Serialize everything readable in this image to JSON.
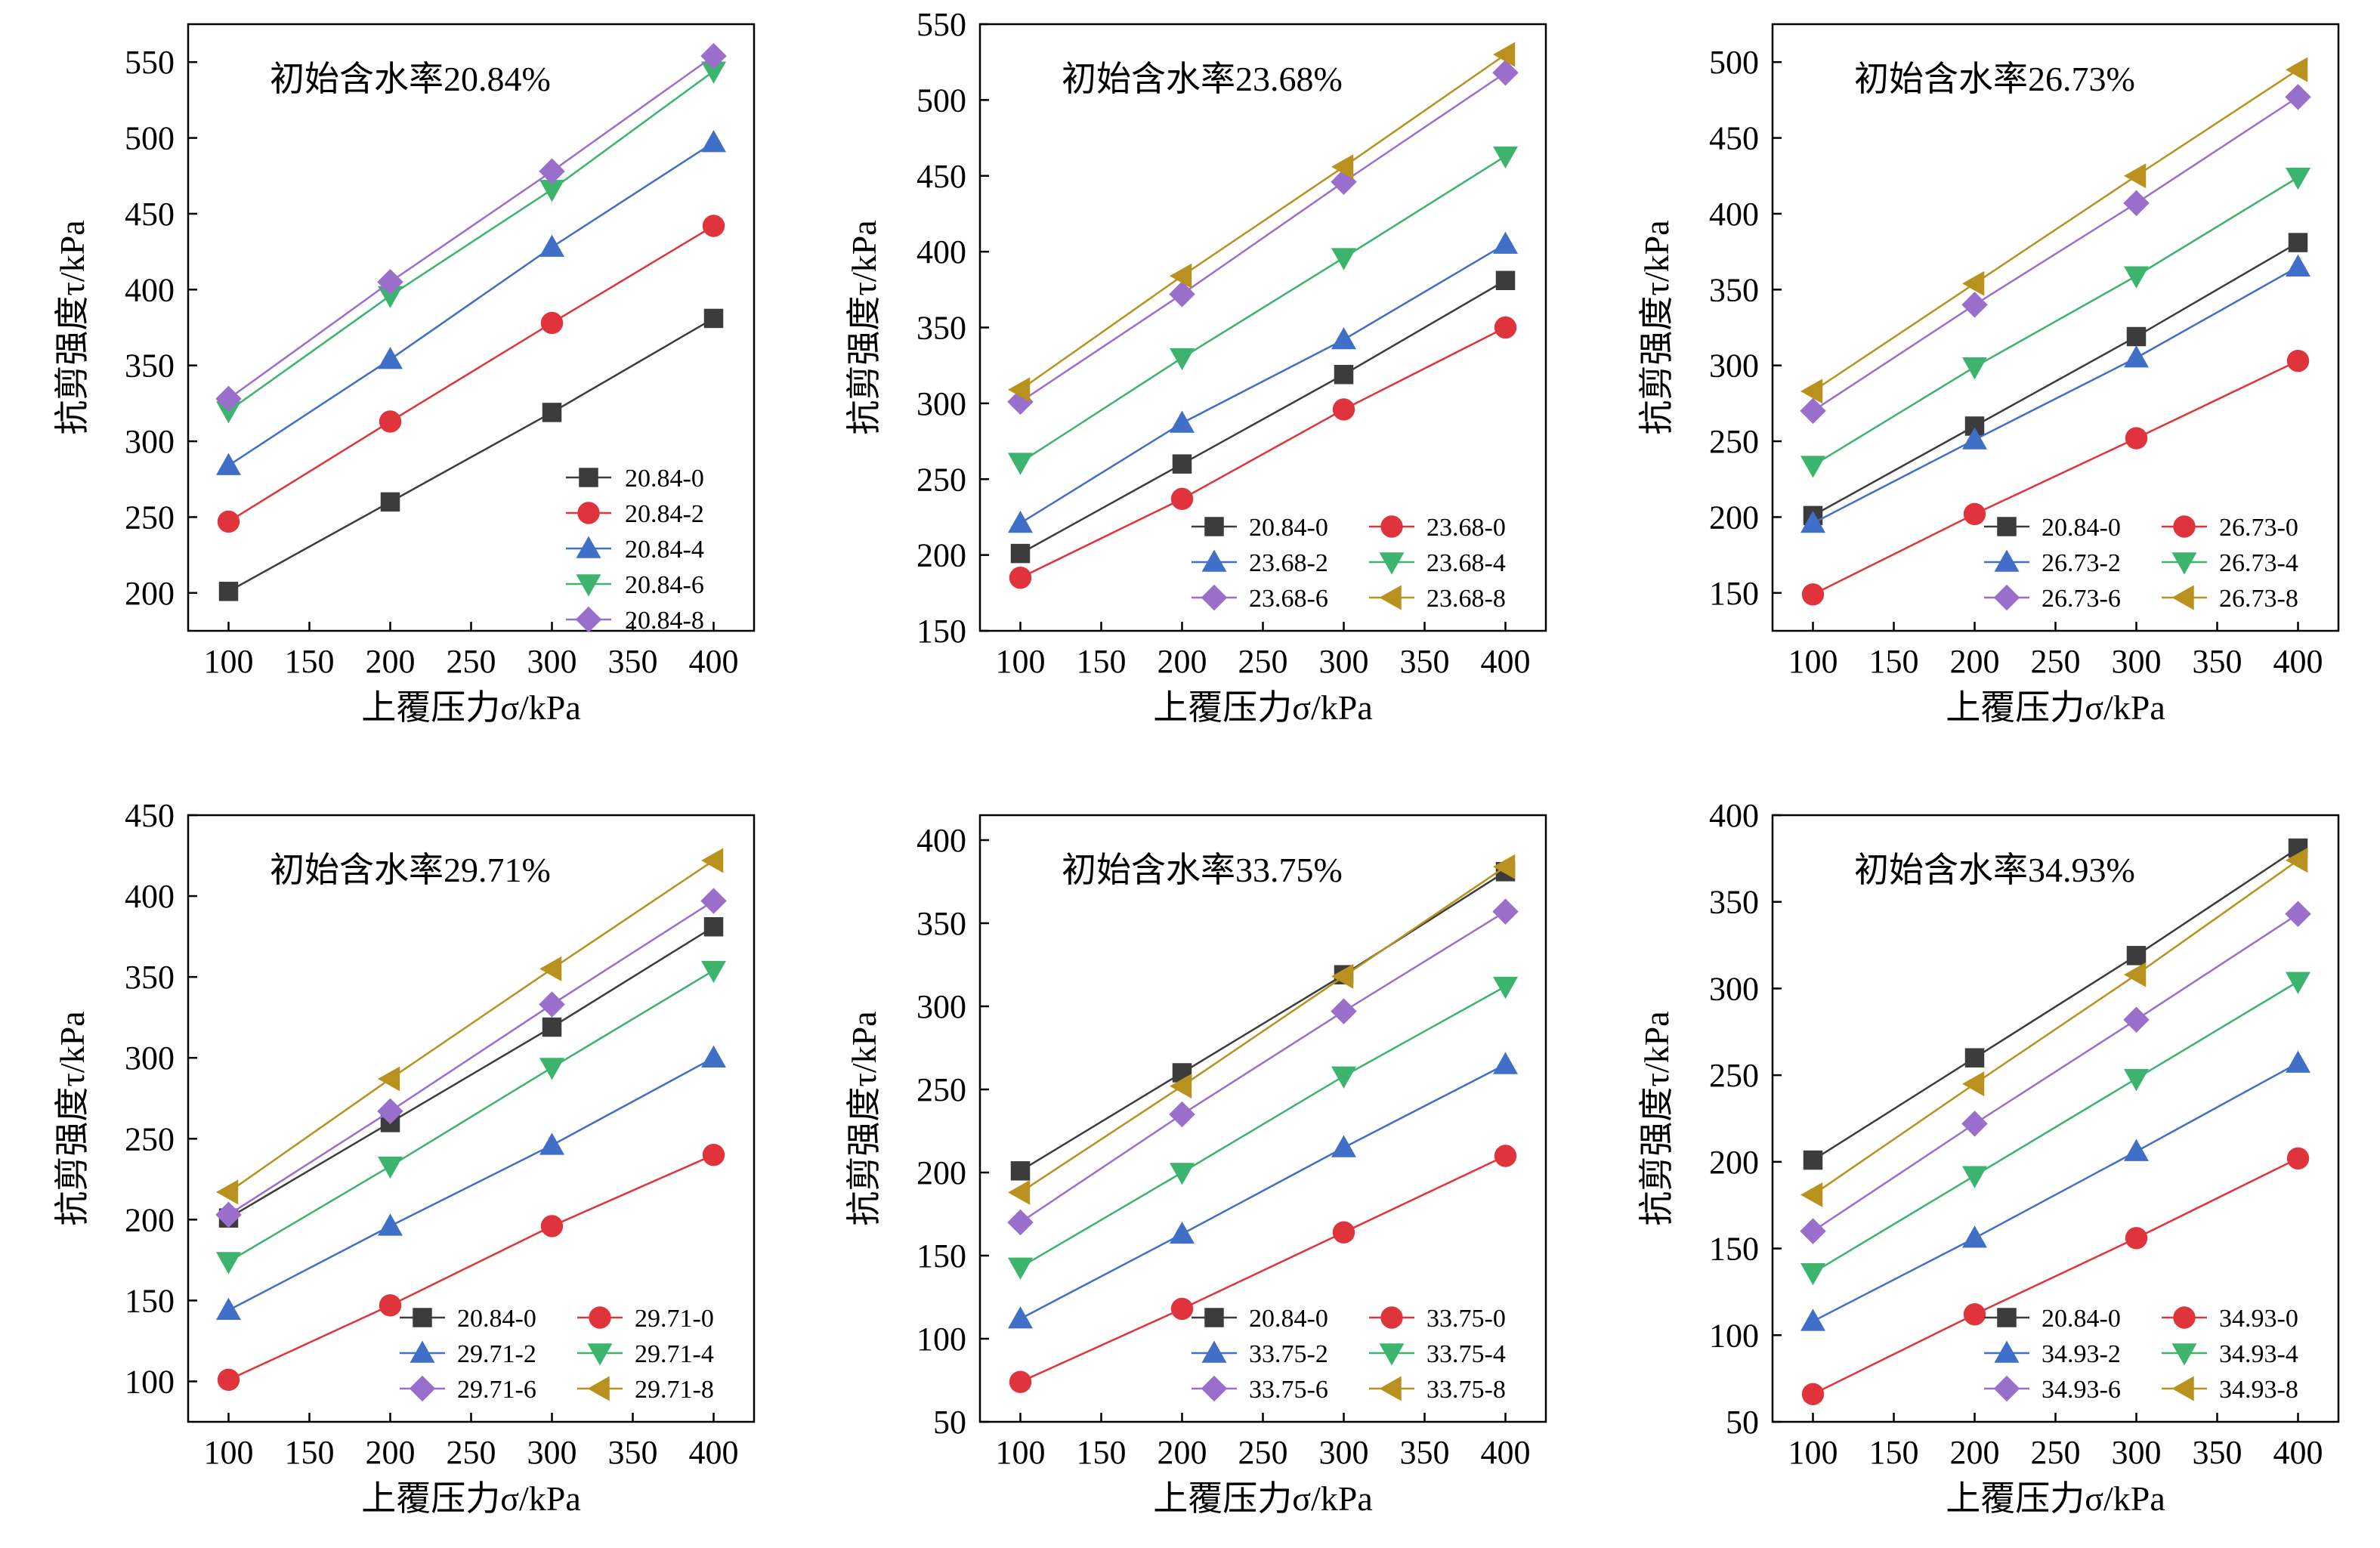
{
  "figure": {
    "colors": {
      "black": "#3c3c3c",
      "red": "#e0343c",
      "blue": "#3f6fc6",
      "green": "#3cb46e",
      "purple": "#9a6fcc",
      "gold": "#b8911f"
    }
  },
  "chart_data": [
    {
      "type": "line",
      "annotation": "初始含水率20.84%",
      "xlabel": "上覆压力σ/kPa",
      "ylabel": "抗剪强度τ/kPa",
      "xlim": [
        75,
        425
      ],
      "ylim": [
        175,
        575
      ],
      "xticks": [
        "100",
        "150",
        "200",
        "250",
        "300",
        "350",
        "400"
      ],
      "yticks": [
        "200",
        "250",
        "300",
        "350",
        "400",
        "450",
        "500",
        "550"
      ],
      "legend_columns": 1,
      "x": [
        100,
        200,
        300,
        400
      ],
      "series": [
        {
          "name": "20.84-0",
          "marker": "square",
          "color": "#3c3c3c",
          "values": [
            201,
            260,
            319,
            381
          ]
        },
        {
          "name": "20.84-2",
          "marker": "circle",
          "color": "#e0343c",
          "values": [
            247,
            313,
            378,
            442
          ]
        },
        {
          "name": "20.84-4",
          "marker": "triangle-up",
          "color": "#3f6fc6",
          "values": [
            284,
            354,
            428,
            497
          ]
        },
        {
          "name": "20.84-6",
          "marker": "triangle-down",
          "color": "#3cb46e",
          "values": [
            320,
            396,
            466,
            544
          ]
        },
        {
          "name": "20.84-8",
          "marker": "diamond",
          "color": "#9a6fcc",
          "values": [
            328,
            405,
            478,
            554
          ]
        }
      ]
    },
    {
      "type": "line",
      "annotation": "初始含水率23.68%",
      "xlabel": "上覆压力σ/kPa",
      "ylabel": "抗剪强度τ/kPa",
      "xlim": [
        75,
        425
      ],
      "ylim": [
        150,
        550
      ],
      "xticks": [
        "100",
        "150",
        "200",
        "250",
        "300",
        "350",
        "400"
      ],
      "yticks": [
        "150",
        "200",
        "250",
        "300",
        "350",
        "400",
        "450",
        "500",
        "550"
      ],
      "legend_columns": 2,
      "x": [
        100,
        200,
        300,
        400
      ],
      "series": [
        {
          "name": "20.84-0",
          "marker": "square",
          "color": "#3c3c3c",
          "values": [
            201,
            260,
            319,
            381
          ]
        },
        {
          "name": "23.68-0",
          "marker": "circle",
          "color": "#e0343c",
          "values": [
            185,
            237,
            296,
            350
          ]
        },
        {
          "name": "23.68-2",
          "marker": "triangle-up",
          "color": "#3f6fc6",
          "values": [
            221,
            287,
            342,
            405
          ]
        },
        {
          "name": "23.68-4",
          "marker": "triangle-down",
          "color": "#3cb46e",
          "values": [
            261,
            330,
            396,
            463
          ]
        },
        {
          "name": "23.68-6",
          "marker": "diamond",
          "color": "#9a6fcc",
          "values": [
            301,
            372,
            446,
            518
          ]
        },
        {
          "name": "23.68-8",
          "marker": "triangle-left",
          "color": "#b8911f",
          "values": [
            309,
            384,
            456,
            530
          ]
        }
      ]
    },
    {
      "type": "line",
      "annotation": "初始含水率26.73%",
      "xlabel": "上覆压力σ/kPa",
      "ylabel": "抗剪强度τ/kPa",
      "xlim": [
        75,
        425
      ],
      "ylim": [
        125,
        525
      ],
      "xticks": [
        "100",
        "150",
        "200",
        "250",
        "300",
        "350",
        "400"
      ],
      "yticks": [
        "150",
        "200",
        "250",
        "300",
        "350",
        "400",
        "450",
        "500"
      ],
      "legend_columns": 2,
      "x": [
        100,
        200,
        300,
        400
      ],
      "series": [
        {
          "name": "20.84-0",
          "marker": "square",
          "color": "#3c3c3c",
          "values": [
            201,
            260,
            319,
            381
          ]
        },
        {
          "name": "26.73-0",
          "marker": "circle",
          "color": "#e0343c",
          "values": [
            149,
            202,
            252,
            303
          ]
        },
        {
          "name": "26.73-2",
          "marker": "triangle-up",
          "color": "#3f6fc6",
          "values": [
            196,
            251,
            305,
            365
          ]
        },
        {
          "name": "26.73-4",
          "marker": "triangle-down",
          "color": "#3cb46e",
          "values": [
            234,
            299,
            359,
            424
          ]
        },
        {
          "name": "26.73-6",
          "marker": "diamond",
          "color": "#9a6fcc",
          "values": [
            270,
            340,
            407,
            477
          ]
        },
        {
          "name": "26.73-8",
          "marker": "triangle-left",
          "color": "#b8911f",
          "values": [
            283,
            354,
            425,
            495
          ]
        }
      ]
    },
    {
      "type": "line",
      "annotation": "初始含水率29.71%",
      "xlabel": "上覆压力σ/kPa",
      "ylabel": "抗剪强度τ/kPa",
      "xlim": [
        75,
        425
      ],
      "ylim": [
        75,
        450
      ],
      "xticks": [
        "100",
        "150",
        "200",
        "250",
        "300",
        "350",
        "400"
      ],
      "yticks": [
        "100",
        "150",
        "200",
        "250",
        "300",
        "350",
        "400",
        "450"
      ],
      "legend_columns": 2,
      "x": [
        100,
        200,
        300,
        400
      ],
      "series": [
        {
          "name": "20.84-0",
          "marker": "square",
          "color": "#3c3c3c",
          "values": [
            201,
            260,
            319,
            381
          ]
        },
        {
          "name": "29.71-0",
          "marker": "circle",
          "color": "#e0343c",
          "values": [
            101,
            147,
            196,
            240
          ]
        },
        {
          "name": "29.71-2",
          "marker": "triangle-up",
          "color": "#3f6fc6",
          "values": [
            144,
            196,
            246,
            300
          ]
        },
        {
          "name": "29.71-4",
          "marker": "triangle-down",
          "color": "#3cb46e",
          "values": [
            174,
            233,
            294,
            354
          ]
        },
        {
          "name": "29.71-6",
          "marker": "diamond",
          "color": "#9a6fcc",
          "values": [
            203,
            267,
            333,
            397
          ]
        },
        {
          "name": "29.71-8",
          "marker": "triangle-left",
          "color": "#b8911f",
          "values": [
            217,
            287,
            355,
            422
          ]
        }
      ]
    },
    {
      "type": "line",
      "annotation": "初始含水率33.75%",
      "xlabel": "上覆压力σ/kPa",
      "ylabel": "抗剪强度τ/kPa",
      "xlim": [
        75,
        425
      ],
      "ylim": [
        50,
        415
      ],
      "xticks": [
        "100",
        "150",
        "200",
        "250",
        "300",
        "350",
        "400"
      ],
      "yticks": [
        "50",
        "100",
        "150",
        "200",
        "250",
        "300",
        "350",
        "400"
      ],
      "legend_columns": 2,
      "x": [
        100,
        200,
        300,
        400
      ],
      "series": [
        {
          "name": "20.84-0",
          "marker": "square",
          "color": "#3c3c3c",
          "values": [
            201,
            260,
            319,
            381
          ]
        },
        {
          "name": "33.75-0",
          "marker": "circle",
          "color": "#e0343c",
          "values": [
            74,
            118,
            164,
            210
          ]
        },
        {
          "name": "33.75-2",
          "marker": "triangle-up",
          "color": "#3f6fc6",
          "values": [
            112,
            163,
            215,
            265
          ]
        },
        {
          "name": "33.75-4",
          "marker": "triangle-down",
          "color": "#3cb46e",
          "values": [
            143,
            200,
            258,
            312
          ]
        },
        {
          "name": "33.75-6",
          "marker": "diamond",
          "color": "#9a6fcc",
          "values": [
            170,
            235,
            297,
            357
          ]
        },
        {
          "name": "33.75-8",
          "marker": "triangle-left",
          "color": "#b8911f",
          "values": [
            188,
            252,
            318,
            384
          ]
        }
      ]
    },
    {
      "type": "line",
      "annotation": "初始含水率34.93%",
      "xlabel": "上覆压力σ/kPa",
      "ylabel": "抗剪强度τ/kPa",
      "xlim": [
        75,
        425
      ],
      "ylim": [
        50,
        400
      ],
      "xticks": [
        "100",
        "150",
        "200",
        "250",
        "300",
        "350",
        "400"
      ],
      "yticks": [
        "50",
        "100",
        "150",
        "200",
        "250",
        "300",
        "350",
        "400"
      ],
      "legend_columns": 2,
      "x": [
        100,
        200,
        300,
        400
      ],
      "series": [
        {
          "name": "20.84-0",
          "marker": "square",
          "color": "#3c3c3c",
          "values": [
            201,
            260,
            319,
            381
          ]
        },
        {
          "name": "34.93-0",
          "marker": "circle",
          "color": "#e0343c",
          "values": [
            66,
            112,
            156,
            202
          ]
        },
        {
          "name": "34.93-2",
          "marker": "triangle-up",
          "color": "#3f6fc6",
          "values": [
            108,
            156,
            206,
            257
          ]
        },
        {
          "name": "34.93-4",
          "marker": "triangle-down",
          "color": "#3cb46e",
          "values": [
            136,
            192,
            248,
            304
          ]
        },
        {
          "name": "34.93-6",
          "marker": "diamond",
          "color": "#9a6fcc",
          "values": [
            160,
            222,
            282,
            343
          ]
        },
        {
          "name": "34.93-8",
          "marker": "triangle-left",
          "color": "#b8911f",
          "values": [
            181,
            245,
            308,
            374
          ]
        }
      ]
    }
  ]
}
